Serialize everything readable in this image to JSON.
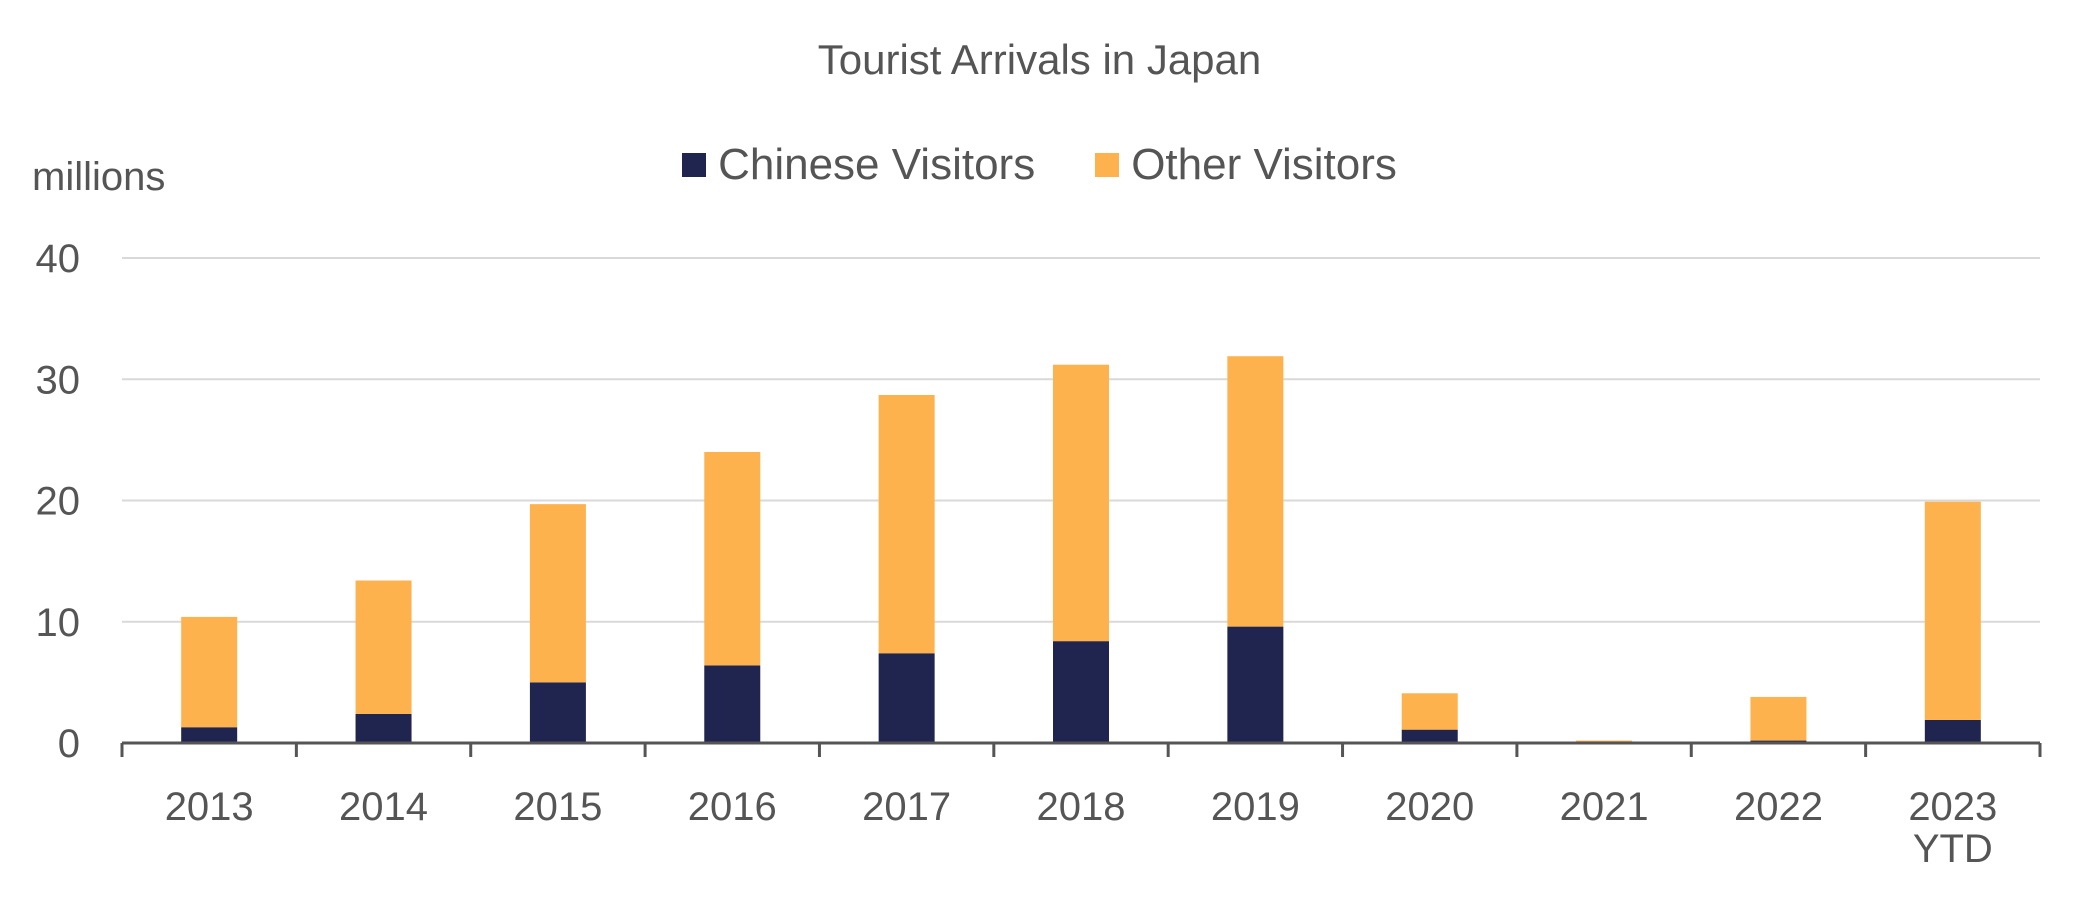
{
  "chart_data": {
    "type": "bar",
    "stacked": true,
    "title": "Tourist Arrivals in Japan",
    "ylabel": "millions",
    "xlabel": "",
    "ylim": [
      0,
      40
    ],
    "yticks": [
      0,
      10,
      20,
      30,
      40
    ],
    "grid": true,
    "legend_position": "top-center",
    "categories": [
      [
        "2013"
      ],
      [
        "2014"
      ],
      [
        "2015"
      ],
      [
        "2016"
      ],
      [
        "2017"
      ],
      [
        "2018"
      ],
      [
        "2019"
      ],
      [
        "2020"
      ],
      [
        "2021"
      ],
      [
        "2022"
      ],
      [
        "2023",
        "YTD"
      ]
    ],
    "series": [
      {
        "name": "Chinese Visitors",
        "color": "#20254f",
        "values": [
          1.3,
          2.4,
          5.0,
          6.4,
          7.4,
          8.4,
          9.6,
          1.1,
          0.0,
          0.2,
          1.9
        ]
      },
      {
        "name": "Other Visitors",
        "color": "#fdb24e",
        "values": [
          9.1,
          11.0,
          14.7,
          17.6,
          21.3,
          22.8,
          22.3,
          3.0,
          0.2,
          3.6,
          18.0
        ]
      }
    ]
  }
}
